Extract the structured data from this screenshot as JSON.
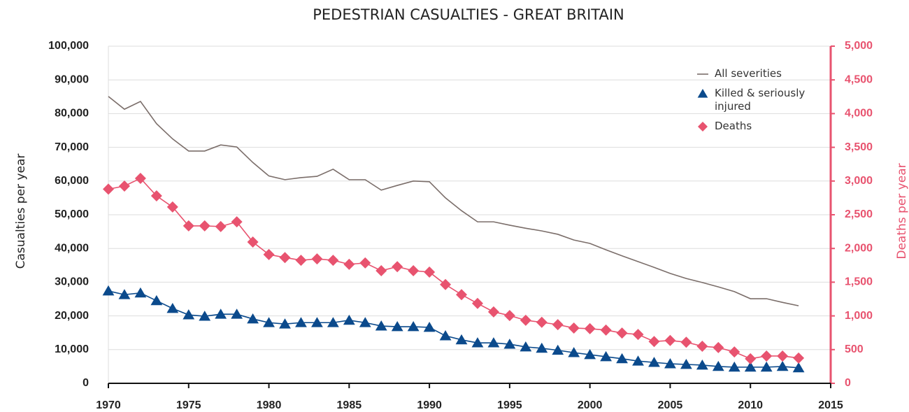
{
  "chart_data": {
    "type": "line",
    "title": "PEDESTRIAN CASUALTIES - GREAT BRITAIN",
    "y_label": "Casualties per year",
    "y2_label": "Deaths per year",
    "x": [
      1970,
      1971,
      1972,
      1973,
      1974,
      1975,
      1976,
      1977,
      1978,
      1979,
      1980,
      1981,
      1982,
      1983,
      1984,
      1985,
      1986,
      1987,
      1988,
      1989,
      1990,
      1991,
      1992,
      1993,
      1994,
      1995,
      1996,
      1997,
      1998,
      1999,
      2000,
      2001,
      2002,
      2003,
      2004,
      2005,
      2006,
      2007,
      2008,
      2009,
      2010,
      2011,
      2012,
      2013
    ],
    "xlim": [
      1970,
      2015
    ],
    "xticks": [
      1970,
      1975,
      1980,
      1985,
      1990,
      1995,
      2000,
      2005,
      2010,
      2015
    ],
    "ylim": [
      0,
      100000
    ],
    "yticks": [
      0,
      {
        "value": 10000,
        "label": "10,000"
      },
      {
        "value": 20000,
        "label": "20,000"
      },
      {
        "value": 30000,
        "label": "30,000"
      },
      {
        "value": 40000,
        "label": "40,000"
      },
      {
        "value": 50000,
        "label": "50,000"
      },
      {
        "value": 60000,
        "label": "60,000"
      },
      {
        "value": 70000,
        "label": "70,000"
      },
      {
        "value": 80000,
        "label": "80,000"
      },
      {
        "value": 90000,
        "label": "90,000"
      },
      {
        "value": 100000,
        "label": "100,000"
      }
    ],
    "y2lim": [
      0,
      5000
    ],
    "y2ticks": [
      0,
      500,
      {
        "value": 1000,
        "label": "1,000"
      },
      {
        "value": 1500,
        "label": "1,500"
      },
      {
        "value": 2000,
        "label": "2,000"
      },
      {
        "value": 2500,
        "label": "2,500"
      },
      {
        "value": 3000,
        "label": "3,000"
      },
      {
        "value": 3500,
        "label": "3,500"
      },
      {
        "value": 4000,
        "label": "4,000"
      },
      {
        "value": 4500,
        "label": "4,500"
      },
      {
        "value": 5000,
        "label": "5,000"
      }
    ],
    "grid": true,
    "legend": "upper right",
    "y2_color": "#e8536f",
    "series": [
      {
        "name": "All severities",
        "color": "#7b6e6a",
        "marker": "none",
        "values": [
          85100,
          81300,
          83600,
          77000,
          72500,
          68900,
          68900,
          70700,
          70100,
          65500,
          61500,
          60400,
          61000,
          61400,
          63500,
          60400,
          60400,
          57300,
          58700,
          60000,
          59800,
          55000,
          51200,
          47900,
          47900,
          46900,
          46000,
          45200,
          44200,
          42500,
          41500,
          39600,
          37800,
          36100,
          34400,
          32600,
          31100,
          29900,
          28600,
          27200,
          25100,
          25100,
          24000,
          23000
        ]
      },
      {
        "name": "Killed & seriously injured",
        "color": "#0b4a8c",
        "marker": "triangle",
        "values": [
          27400,
          26300,
          26800,
          24500,
          22200,
          20300,
          19900,
          20500,
          20500,
          19100,
          18000,
          17600,
          18000,
          18000,
          18000,
          18700,
          18000,
          17000,
          16800,
          16800,
          16600,
          14100,
          12900,
          12000,
          12000,
          11600,
          10800,
          10400,
          9800,
          9100,
          8500,
          7900,
          7300,
          6600,
          6200,
          5800,
          5600,
          5400,
          5000,
          4800,
          4800,
          4800,
          5000,
          4600
        ]
      },
      {
        "name": "Deaths",
        "color": "#e8536f",
        "marker": "diamond",
        "axis": "y2",
        "values": [
          2880,
          2925,
          3040,
          2780,
          2615,
          2335,
          2335,
          2325,
          2395,
          2095,
          1910,
          1865,
          1825,
          1845,
          1825,
          1765,
          1785,
          1670,
          1730,
          1670,
          1650,
          1465,
          1315,
          1185,
          1060,
          1005,
          935,
          905,
          870,
          820,
          810,
          790,
          745,
          725,
          620,
          635,
          610,
          550,
          530,
          465,
          365,
          405,
          405,
          375
        ]
      }
    ]
  }
}
